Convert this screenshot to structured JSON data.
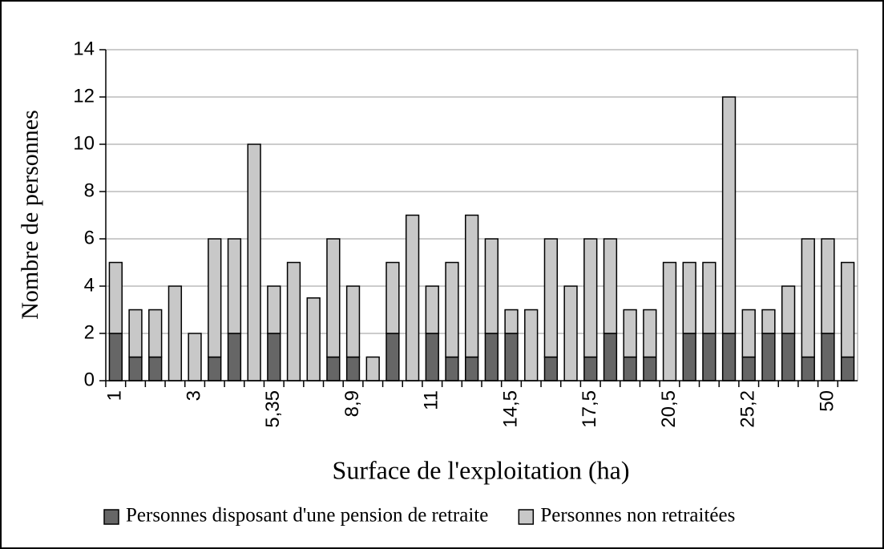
{
  "chart_data": {
    "type": "stacked_bar",
    "xlabel": "Surface de l'exploitation (ha)",
    "ylabel": "Nombre de personnes",
    "categories": [
      "1",
      null,
      null,
      null,
      "3",
      null,
      null,
      null,
      "5,35",
      null,
      null,
      null,
      "8,9",
      null,
      null,
      null,
      "11",
      null,
      null,
      null,
      "14,5",
      null,
      null,
      null,
      "17,5",
      null,
      null,
      null,
      "20,5",
      null,
      null,
      null,
      "25,2",
      null,
      null,
      null,
      "50",
      null
    ],
    "series": [
      {
        "name": "Personnes disposant d'une pension de retraite",
        "color": "#666666",
        "values": [
          2,
          1,
          1,
          0,
          0,
          1,
          2,
          0,
          2,
          0,
          0,
          1,
          1,
          0,
          2,
          0,
          2,
          1,
          1,
          2,
          2,
          0,
          1,
          0,
          1,
          2,
          1,
          1,
          0,
          2,
          2,
          2,
          1,
          2,
          2,
          1,
          2,
          1
        ]
      },
      {
        "name": "Personnes non retraitées",
        "color": "#c8c8c8",
        "values": [
          3,
          2,
          2,
          4,
          2,
          5,
          4,
          10,
          2,
          5,
          3.5,
          5,
          3,
          1,
          3,
          7,
          2,
          4,
          6,
          4,
          1,
          3,
          5,
          4,
          5,
          4,
          2,
          2,
          5,
          3,
          3,
          10,
          2,
          1,
          2,
          5,
          4,
          4
        ]
      }
    ],
    "ylim": [
      0,
      14
    ],
    "yticks": [
      0,
      2,
      4,
      6,
      8,
      10,
      12,
      14
    ],
    "grid": true,
    "legend": "bottom"
  }
}
